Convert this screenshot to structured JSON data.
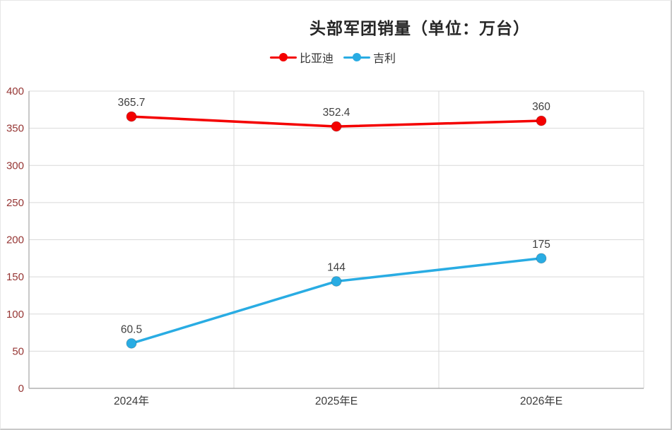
{
  "chart_data": {
    "type": "line",
    "title": "头部军团销量（单位：万台）",
    "categories": [
      "2024年",
      "2025年E",
      "2026年E"
    ],
    "series": [
      {
        "name": "比亚迪",
        "color": "#f40000",
        "values": [
          365.7,
          352.4,
          360
        ]
      },
      {
        "name": "吉利",
        "color": "#29ace3",
        "values": [
          60.5,
          144,
          175
        ]
      }
    ],
    "ylim": [
      0,
      400
    ],
    "ytick_interval": 50,
    "grid": true,
    "legend_position": "top",
    "y_tick_color": "#963634",
    "x_tick_color": "#3b3b3b",
    "grid_color": "#d9d9d9",
    "axis_color": "#b0b0b0",
    "label_color": "#404040"
  }
}
